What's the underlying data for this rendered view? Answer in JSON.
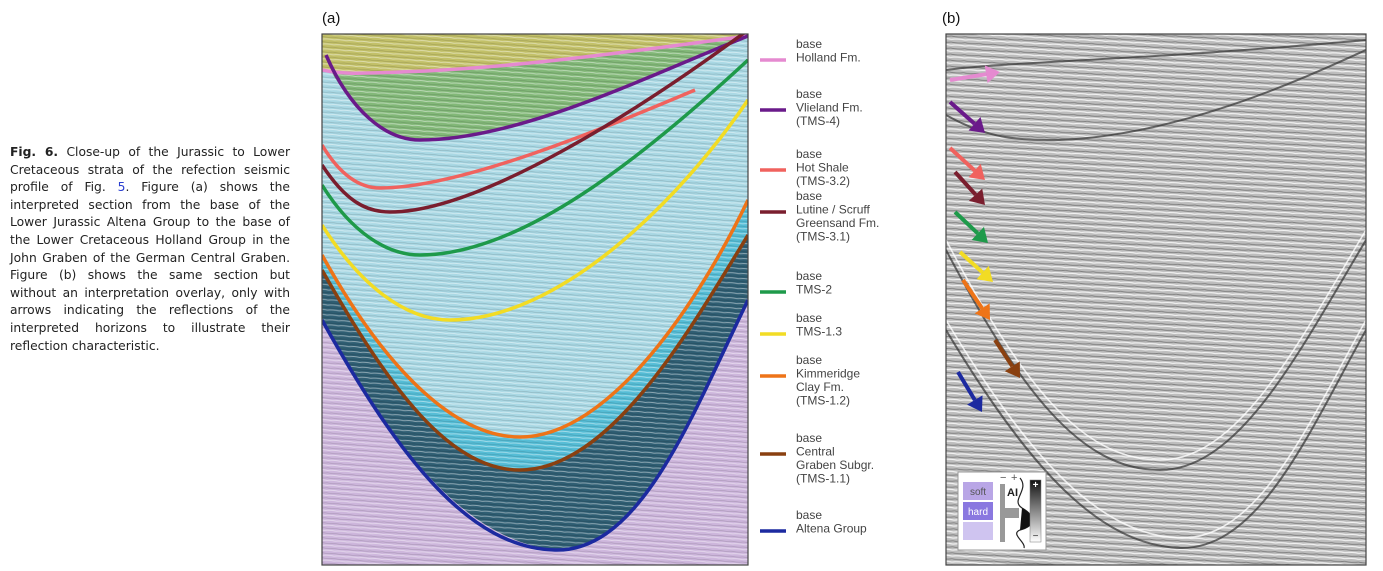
{
  "caption": {
    "label": "Fig. 6.",
    "text_before": "Close-up of the Jurassic to Lower Cretaceous strata of the refection seismic profile of Fig.",
    "ref": "5",
    "text_after": ". Figure (a) shows the interpreted section from the base of the Lower Jurassic Altena Group to the base of the Lower Cretaceous Holland Group in the John Graben of the German Central Graben. Figure (b) shows the same section but without an interpretation overlay, only with arrows indicating the reflections of the interpreted horizons to illustrate their reflection characteristic."
  },
  "panels": {
    "a": "(a)",
    "b": "(b)"
  },
  "legend": [
    {
      "color": "#e58ad0",
      "lines": [
        "base",
        "Holland Fm."
      ]
    },
    {
      "color": "#6a1a8a",
      "lines": [
        "base",
        "Vlieland Fm.",
        "(TMS-4)"
      ]
    },
    {
      "color": "#f0625e",
      "lines": [
        "base",
        "Hot Shale",
        "(TMS-3.2)"
      ]
    },
    {
      "color": "#7a1e2e",
      "lines": [
        "base",
        "Lutine / Scruff",
        "Greensand Fm.",
        "(TMS-3.1)"
      ]
    },
    {
      "color": "#1e9a4a",
      "lines": [
        "base",
        "TMS-2"
      ]
    },
    {
      "color": "#f2dc24",
      "lines": [
        "base",
        "TMS-1.3"
      ]
    },
    {
      "color": "#ee7418",
      "lines": [
        "base",
        "Kimmeridge",
        "Clay Fm.",
        "(TMS-1.2)"
      ]
    },
    {
      "color": "#8a4010",
      "lines": [
        "base",
        "Central",
        "Graben Subgr.",
        "(TMS-1.1)"
      ]
    },
    {
      "color": "#1c2aa0",
      "lines": [
        "base",
        "Altena Group"
      ]
    }
  ],
  "inset": {
    "soft": "soft",
    "hard": "hard",
    "ai": "AI",
    "ai_minus": "−",
    "ai_plus": "+",
    "scale_plus": "+",
    "scale_minus": "−"
  }
}
